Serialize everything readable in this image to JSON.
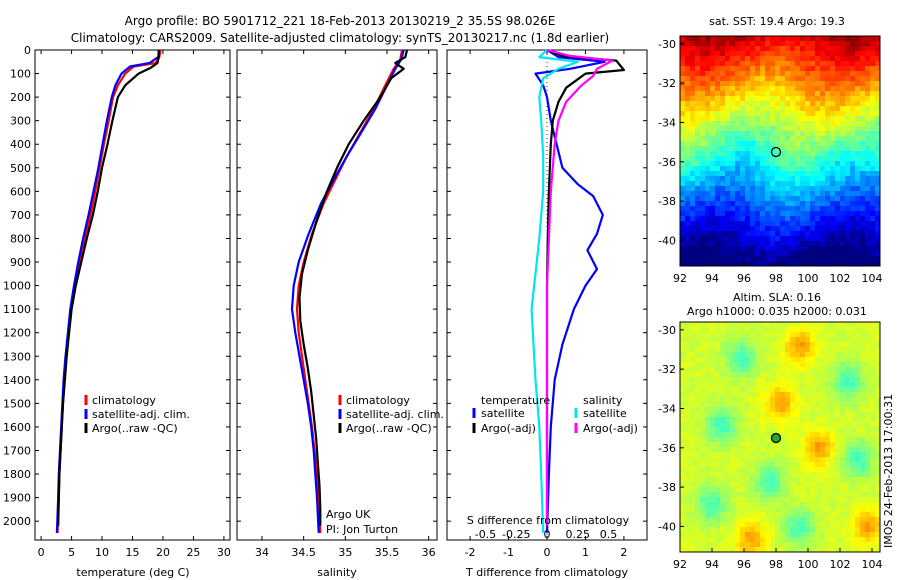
{
  "header": {
    "title1": "Argo profile: BO 5901712_221 18-Feb-2013 20130219_2 35.5S 98.026E",
    "title2": "Climatology: CARS2009. Satellite-adjusted climatology: synTS_20130217.nc (1.8d earlier)"
  },
  "sst_panel": {
    "title": "sat. SST: 19.4 Argo: 19.3",
    "yticks": [
      "-30",
      "-32",
      "-34",
      "-36",
      "-38",
      "-40"
    ],
    "xticks": [
      "92",
      "94",
      "96",
      "98",
      "100",
      "102",
      "104"
    ]
  },
  "sla_panel": {
    "title1": "Altim. SLA: 0.16",
    "title2": "Argo h1000: 0.035 h2000: 0.031",
    "yticks": [
      "-30",
      "-32",
      "-34",
      "-36",
      "-38",
      "-40"
    ],
    "xticks": [
      "92",
      "94",
      "96",
      "98",
      "100",
      "102",
      "104"
    ]
  },
  "side_label": "IMOS 24-Feb-2013 17:00:31",
  "legend_ts": {
    "climatology": "climatology",
    "satellite": "satellite-adj. clim.",
    "argo": "Argo(..raw -QC)"
  },
  "legend_diff": {
    "temperature": "temperature",
    "salinity": "salinity",
    "t_satellite": "satellite",
    "t_argo": "Argo(-adj)",
    "s_satellite": "satellite",
    "s_argo": "Argo(-adj)"
  },
  "annotation": {
    "line1": "Argo UK",
    "line2": "PI: Jon Turton"
  },
  "colors": {
    "climatology": "#ff0000",
    "satellite": "#0000ff",
    "argo": "#000000",
    "s_satellite": "#00e5ee",
    "s_argo": "#ff00ff"
  },
  "chart_data": [
    {
      "type": "line",
      "panel": "temperature",
      "xlabel": "temperature (deg C)",
      "ylabel": "",
      "xlim": [
        -1,
        31
      ],
      "ylim": [
        2080,
        0
      ],
      "xticks": [
        "0",
        "5",
        "10",
        "15",
        "20",
        "25",
        "30"
      ],
      "yticks": [
        "0",
        "100",
        "200",
        "300",
        "400",
        "500",
        "600",
        "700",
        "800",
        "900",
        "1000",
        "1100",
        "1200",
        "1300",
        "1400",
        "1500",
        "1600",
        "1700",
        "1800",
        "1900",
        "2000"
      ],
      "series": [
        {
          "name": "climatology",
          "color": "#ff0000",
          "points": [
            [
              19.6,
              0
            ],
            [
              19.4,
              30
            ],
            [
              18.8,
              55
            ],
            [
              15.2,
              70
            ],
            [
              13.8,
              100
            ],
            [
              12.6,
              150
            ],
            [
              11.8,
              200
            ],
            [
              11.1,
              300
            ],
            [
              10.3,
              400
            ],
            [
              9.6,
              500
            ],
            [
              8.9,
              600
            ],
            [
              8.1,
              700
            ],
            [
              7.2,
              800
            ],
            [
              6.3,
              900
            ],
            [
              5.5,
              1000
            ],
            [
              4.9,
              1100
            ],
            [
              4.5,
              1200
            ],
            [
              4.1,
              1300
            ],
            [
              3.8,
              1400
            ],
            [
              3.6,
              1500
            ],
            [
              3.4,
              1600
            ],
            [
              3.2,
              1700
            ],
            [
              3.0,
              1800
            ],
            [
              2.9,
              1900
            ],
            [
              2.7,
              2050
            ]
          ]
        },
        {
          "name": "satellite-adj. clim.",
          "color": "#0000ff",
          "points": [
            [
              19.4,
              0
            ],
            [
              19.2,
              30
            ],
            [
              17.8,
              55
            ],
            [
              14.6,
              70
            ],
            [
              13.2,
              100
            ],
            [
              12.2,
              150
            ],
            [
              11.6,
              200
            ],
            [
              10.8,
              300
            ],
            [
              10.1,
              400
            ],
            [
              9.4,
              500
            ],
            [
              8.6,
              600
            ],
            [
              7.8,
              700
            ],
            [
              6.9,
              800
            ],
            [
              6.1,
              900
            ],
            [
              5.4,
              1000
            ],
            [
              4.8,
              1100
            ],
            [
              4.4,
              1200
            ],
            [
              4.0,
              1300
            ],
            [
              3.7,
              1400
            ],
            [
              3.5,
              1500
            ],
            [
              3.3,
              1600
            ],
            [
              3.1,
              1700
            ],
            [
              2.9,
              1800
            ],
            [
              2.8,
              1900
            ],
            [
              2.6,
              2050
            ]
          ]
        },
        {
          "name": "Argo(..raw -QC)",
          "color": "#000000",
          "points": [
            [
              19.3,
              0
            ],
            [
              19.3,
              30
            ],
            [
              19.1,
              55
            ],
            [
              18.0,
              75
            ],
            [
              16.0,
              100
            ],
            [
              13.8,
              150
            ],
            [
              12.6,
              200
            ],
            [
              11.7,
              300
            ],
            [
              10.9,
              400
            ],
            [
              10.0,
              500
            ],
            [
              9.3,
              600
            ],
            [
              8.5,
              700
            ],
            [
              7.5,
              800
            ],
            [
              6.6,
              900
            ],
            [
              5.7,
              1000
            ],
            [
              5.0,
              1100
            ],
            [
              4.6,
              1200
            ],
            [
              4.2,
              1300
            ],
            [
              3.9,
              1400
            ],
            [
              3.6,
              1500
            ],
            [
              3.4,
              1600
            ],
            [
              3.2,
              1700
            ],
            [
              3.0,
              1800
            ],
            [
              2.9,
              1900
            ],
            [
              2.8,
              2020
            ]
          ]
        }
      ]
    },
    {
      "type": "line",
      "panel": "salinity",
      "xlabel": "salinity",
      "ylabel": "",
      "xlim": [
        33.7,
        36.1
      ],
      "ylim": [
        2080,
        0
      ],
      "xticks": [
        "34",
        "34.5",
        "35",
        "35.5",
        "36"
      ],
      "series": [
        {
          "name": "climatology",
          "color": "#ff0000",
          "points": [
            [
              35.68,
              0
            ],
            [
              35.66,
              40
            ],
            [
              35.58,
              80
            ],
            [
              35.48,
              150
            ],
            [
              35.34,
              250
            ],
            [
              35.18,
              350
            ],
            [
              35.02,
              450
            ],
            [
              34.88,
              550
            ],
            [
              34.74,
              650
            ],
            [
              34.6,
              780
            ],
            [
              34.5,
              900
            ],
            [
              34.44,
              1000
            ],
            [
              34.42,
              1100
            ],
            [
              34.44,
              1200
            ],
            [
              34.48,
              1300
            ],
            [
              34.52,
              1400
            ],
            [
              34.56,
              1500
            ],
            [
              34.6,
              1600
            ],
            [
              34.63,
              1700
            ],
            [
              34.66,
              1800
            ],
            [
              34.68,
              1900
            ],
            [
              34.7,
              2050
            ]
          ]
        },
        {
          "name": "satellite-adj. clim.",
          "color": "#0000ff",
          "points": [
            [
              35.7,
              0
            ],
            [
              35.67,
              40
            ],
            [
              35.6,
              80
            ],
            [
              35.5,
              150
            ],
            [
              35.36,
              250
            ],
            [
              35.19,
              350
            ],
            [
              35.02,
              450
            ],
            [
              34.86,
              550
            ],
            [
              34.71,
              650
            ],
            [
              34.56,
              780
            ],
            [
              34.44,
              900
            ],
            [
              34.38,
              1000
            ],
            [
              34.36,
              1100
            ],
            [
              34.4,
              1200
            ],
            [
              34.45,
              1300
            ],
            [
              34.5,
              1400
            ],
            [
              34.55,
              1500
            ],
            [
              34.59,
              1600
            ],
            [
              34.62,
              1700
            ],
            [
              34.64,
              1800
            ],
            [
              34.66,
              1900
            ],
            [
              34.68,
              2050
            ]
          ]
        },
        {
          "name": "Argo(..raw -QC)",
          "color": "#000000",
          "points": [
            [
              35.74,
              0
            ],
            [
              35.72,
              30
            ],
            [
              35.6,
              55
            ],
            [
              35.7,
              80
            ],
            [
              35.55,
              120
            ],
            [
              35.42,
              200
            ],
            [
              35.22,
              300
            ],
            [
              35.04,
              400
            ],
            [
              34.9,
              500
            ],
            [
              34.78,
              600
            ],
            [
              34.66,
              720
            ],
            [
              34.55,
              850
            ],
            [
              34.48,
              950
            ],
            [
              34.45,
              1050
            ],
            [
              34.46,
              1150
            ],
            [
              34.5,
              1250
            ],
            [
              34.55,
              1350
            ],
            [
              34.59,
              1450
            ],
            [
              34.62,
              1550
            ],
            [
              34.65,
              1650
            ],
            [
              34.67,
              1750
            ],
            [
              34.69,
              1850
            ],
            [
              34.7,
              1950
            ],
            [
              34.7,
              2020
            ]
          ]
        }
      ]
    },
    {
      "type": "line",
      "panel": "differences",
      "xlabel": "T difference from climatology",
      "xlabel_top": "S difference from climatology",
      "ylabel": "",
      "xlim": [
        -2.6,
        2.6
      ],
      "ylim": [
        2080,
        0
      ],
      "xticks": [
        "-2",
        "-1",
        "0",
        "1",
        "2"
      ],
      "xticks_top": [
        "-0.5",
        "-0.25",
        "0",
        "0.25",
        "0.5"
      ],
      "series": [
        {
          "name": "temperature satellite",
          "color": "#0000ff",
          "points": [
            [
              0,
              0
            ],
            [
              0.3,
              30
            ],
            [
              1.5,
              50
            ],
            [
              0.6,
              80
            ],
            [
              -0.3,
              100
            ],
            [
              -0.1,
              150
            ],
            [
              0.0,
              200
            ],
            [
              0.1,
              300
            ],
            [
              0.25,
              400
            ],
            [
              0.4,
              500
            ],
            [
              0.8,
              570
            ],
            [
              1.2,
              620
            ],
            [
              1.45,
              700
            ],
            [
              1.3,
              780
            ],
            [
              1.05,
              850
            ],
            [
              1.3,
              930
            ],
            [
              1.0,
              1000
            ],
            [
              0.7,
              1100
            ],
            [
              0.4,
              1250
            ],
            [
              0.2,
              1400
            ],
            [
              0.1,
              1600
            ],
            [
              0.05,
              1800
            ],
            [
              0.0,
              2050
            ]
          ]
        },
        {
          "name": "temperature Argo(-adj)",
          "color": "#000000",
          "points": [
            [
              0,
              0
            ],
            [
              0.4,
              25
            ],
            [
              1.8,
              45
            ],
            [
              2.0,
              85
            ],
            [
              1.0,
              100
            ],
            [
              0.5,
              160
            ],
            [
              0.3,
              220
            ],
            [
              0.15,
              300
            ],
            [
              0.1,
              400
            ],
            [
              0.05,
              600
            ],
            [
              0.02,
              800
            ],
            [
              0.0,
              1000
            ],
            [
              0.0,
              2020
            ]
          ]
        },
        {
          "name": "salinity satellite",
          "color": "#00e5ee",
          "points": [
            [
              0,
              0
            ],
            [
              -0.2,
              30
            ],
            [
              0.8,
              50
            ],
            [
              0.3,
              80
            ],
            [
              -0.1,
              120
            ],
            [
              -0.2,
              200
            ],
            [
              -0.15,
              300
            ],
            [
              -0.1,
              450
            ],
            [
              -0.1,
              600
            ],
            [
              -0.2,
              800
            ],
            [
              -0.3,
              950
            ],
            [
              -0.4,
              1100
            ],
            [
              -0.35,
              1250
            ],
            [
              -0.3,
              1400
            ],
            [
              -0.2,
              1600
            ],
            [
              -0.15,
              1800
            ],
            [
              -0.1,
              2050
            ]
          ]
        },
        {
          "name": "salinity Argo(-adj)",
          "color": "#ff00ff",
          "points": [
            [
              0,
              0
            ],
            [
              0.6,
              25
            ],
            [
              1.7,
              45
            ],
            [
              1.3,
              80
            ],
            [
              1.2,
              110
            ],
            [
              0.9,
              150
            ],
            [
              0.5,
              220
            ],
            [
              0.3,
              300
            ],
            [
              0.2,
              400
            ],
            [
              0.1,
              600
            ],
            [
              0.05,
              800
            ],
            [
              0.0,
              1000
            ],
            [
              0.0,
              2020
            ]
          ]
        }
      ]
    },
    {
      "type": "heatmap",
      "panel": "sst_map",
      "title": "sat. SST: 19.4 Argo: 19.3",
      "xlim": [
        92,
        104.5
      ],
      "ylim": [
        -41.3,
        -29.6
      ],
      "marker": {
        "lon": 98.0,
        "lat": -35.5
      }
    },
    {
      "type": "heatmap",
      "panel": "sla_map",
      "title": "Altim. SLA: 0.16",
      "xlim": [
        92,
        104.5
      ],
      "ylim": [
        -41.3,
        -29.6
      ],
      "marker": {
        "lon": 98.0,
        "lat": -35.5
      }
    }
  ]
}
